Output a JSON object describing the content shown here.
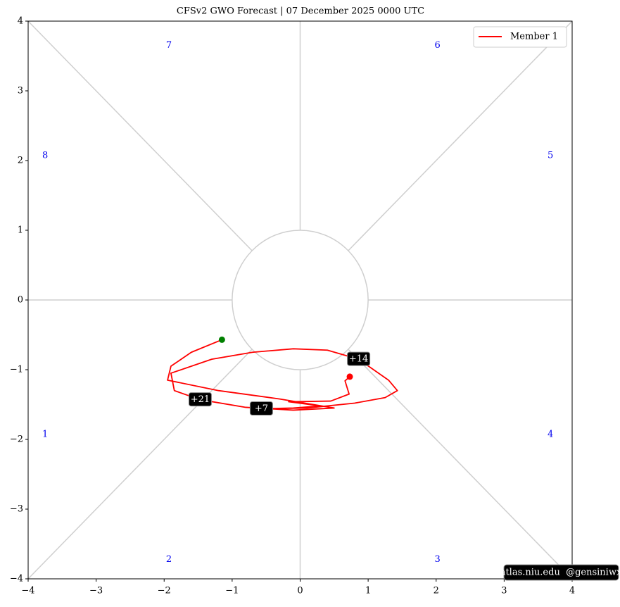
{
  "chart_data": {
    "type": "line",
    "title": "CFSv2 GWO Forecast   |   07  December  2025 0000 UTC",
    "xlim": [
      -4,
      4
    ],
    "ylim": [
      -4,
      4
    ],
    "xticks": [
      {
        "value": -4,
        "label": "−4"
      },
      {
        "value": -3,
        "label": "−3"
      },
      {
        "value": -2,
        "label": "−2"
      },
      {
        "value": -1,
        "label": "−1"
      },
      0,
      1,
      2,
      3,
      4
    ],
    "yticks": [
      {
        "value": -4,
        "label": "−4"
      },
      {
        "value": -3,
        "label": "−3"
      },
      {
        "value": -2,
        "label": "−2"
      },
      {
        "value": -1,
        "label": "−1"
      },
      0,
      1,
      2,
      3,
      4
    ],
    "phase_labels": [
      "1",
      "2",
      "3",
      "4",
      "5",
      "6",
      "7",
      "8"
    ],
    "legend": "upper right",
    "series": [
      {
        "name": "Member 1",
        "color": "red",
        "x": [
          0.73,
          0.66,
          0.72,
          0.45,
          -0.17,
          0.3,
          -0.1,
          -0.57,
          0.1,
          0.8,
          1.25,
          1.43,
          1.3,
          1.05,
          0.86,
          0.4,
          -0.1,
          -0.7,
          -1.3,
          -1.9,
          -1.85,
          -1.47,
          -0.8,
          -0.1,
          0.5,
          -0.3,
          -1.2,
          -1.95,
          -1.9,
          -1.6,
          -1.15
        ],
        "y": [
          -1.1,
          -1.16,
          -1.35,
          -1.45,
          -1.46,
          -1.52,
          -1.55,
          -1.56,
          -1.55,
          -1.48,
          -1.4,
          -1.3,
          -1.15,
          -0.98,
          -0.85,
          -0.72,
          -0.7,
          -0.75,
          -0.85,
          -1.05,
          -1.3,
          -1.43,
          -1.54,
          -1.58,
          -1.55,
          -1.42,
          -1.3,
          -1.15,
          -0.95,
          -0.75,
          -0.57
        ]
      }
    ],
    "start_color": "red",
    "end_color": "green",
    "annotations": [
      {
        "text": "+7",
        "index": 7
      },
      {
        "text": "+14",
        "index": 14
      },
      {
        "text": "+21",
        "index": 21
      }
    ],
    "watermark": "atlas.niu.edu  @gensiniwx"
  }
}
